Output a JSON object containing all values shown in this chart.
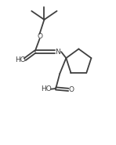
{
  "bg_color": "#ffffff",
  "line_color": "#404040",
  "text_color": "#404040",
  "line_width": 1.3,
  "font_size": 6.5,
  "title": "",
  "xlim": [
    0,
    10
  ],
  "ylim": [
    0,
    12
  ]
}
